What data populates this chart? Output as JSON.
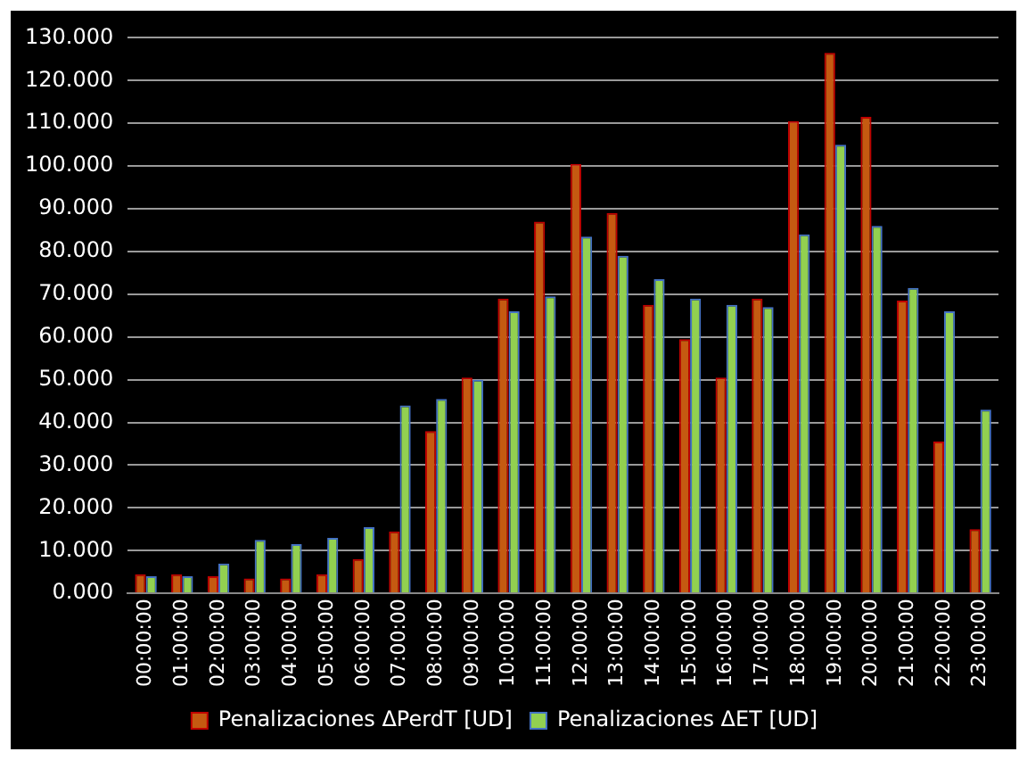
{
  "chart_data": {
    "type": "bar",
    "categories": [
      "00:00:00",
      "01:00:00",
      "02:00:00",
      "03:00:00",
      "04:00:00",
      "05:00:00",
      "06:00:00",
      "07:00:00",
      "08:00:00",
      "09:00:00",
      "10:00:00",
      "11:00:00",
      "12:00:00",
      "13:00:00",
      "14:00:00",
      "15:00:00",
      "16:00:00",
      "17:00:00",
      "18:00:00",
      "19:00:00",
      "20:00:00",
      "21:00:00",
      "22:00:00",
      "23:00:00"
    ],
    "series": [
      {
        "name": "Penalizaciones ΔPerdT [UD]",
        "color": "#c55a11",
        "values": [
          4.5,
          4.5,
          4,
          3.5,
          3.5,
          4.5,
          8,
          14.5,
          38,
          50.5,
          69,
          87,
          100.5,
          89,
          67.5,
          59.5,
          50.5,
          69,
          110.5,
          126.5,
          111.5,
          68.5,
          35.5,
          15
        ]
      },
      {
        "name": "Penalizaciones ΔET [UD]",
        "color": "#92d050",
        "values": [
          4,
          4,
          7,
          12.5,
          11.5,
          13,
          15.5,
          44,
          45.5,
          50,
          66,
          69.5,
          83.5,
          79,
          73.5,
          69,
          67.5,
          67,
          84,
          105,
          86,
          71.5,
          66,
          43
        ]
      }
    ],
    "ylim": [
      0,
      130
    ],
    "yticks": [
      {
        "value": 0,
        "label": "0.000"
      },
      {
        "value": 10,
        "label": "10.000"
      },
      {
        "value": 20,
        "label": "20.000"
      },
      {
        "value": 30,
        "label": "30.000"
      },
      {
        "value": 40,
        "label": "40.000"
      },
      {
        "value": 50,
        "label": "50.000"
      },
      {
        "value": 60,
        "label": "60.000"
      },
      {
        "value": 70,
        "label": "70.000"
      },
      {
        "value": 80,
        "label": "80.000"
      },
      {
        "value": 90,
        "label": "90.000"
      },
      {
        "value": 100,
        "label": "100.000"
      },
      {
        "value": 110,
        "label": "110.000"
      },
      {
        "value": 120,
        "label": "120.000"
      },
      {
        "value": 130,
        "label": "130.000"
      }
    ],
    "grid": "y",
    "legend": "bottom"
  }
}
